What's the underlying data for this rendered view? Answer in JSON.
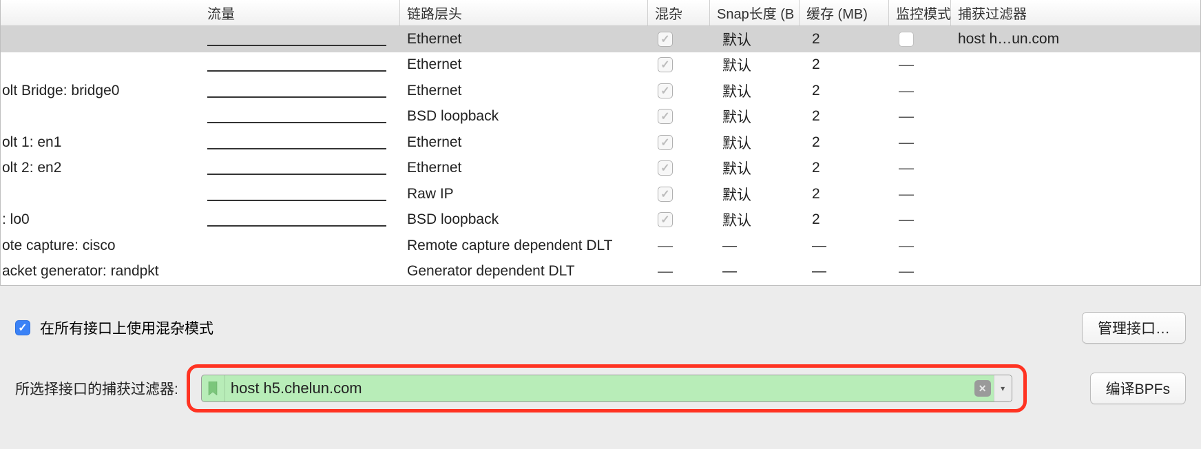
{
  "columns": {
    "interface": "",
    "traffic": "流量",
    "link": "链路层头",
    "promisc": "混杂",
    "snap": "Snap长度 (B",
    "buffer": "缓存 (MB)",
    "monitor": "监控模式",
    "filter": "捕获过滤器"
  },
  "rows": [
    {
      "iface": "",
      "link": "Ethernet",
      "promisc": "checked-gray",
      "snap": "默认",
      "buffer": "2",
      "monitor": "box-white",
      "filter": "host h…un.com",
      "selected": true,
      "sparkline": true
    },
    {
      "iface": "",
      "link": "Ethernet",
      "promisc": "checked-gray",
      "snap": "默认",
      "buffer": "2",
      "monitor": "dash",
      "filter": "",
      "selected": false,
      "sparkline": true
    },
    {
      "iface": "olt Bridge: bridge0",
      "link": "Ethernet",
      "promisc": "checked-gray",
      "snap": "默认",
      "buffer": "2",
      "monitor": "dash",
      "filter": "",
      "selected": false,
      "sparkline": true
    },
    {
      "iface": "",
      "link": "BSD loopback",
      "promisc": "checked-gray",
      "snap": "默认",
      "buffer": "2",
      "monitor": "dash",
      "filter": "",
      "selected": false,
      "sparkline": true
    },
    {
      "iface": "olt 1: en1",
      "link": "Ethernet",
      "promisc": "checked-gray",
      "snap": "默认",
      "buffer": "2",
      "monitor": "dash",
      "filter": "",
      "selected": false,
      "sparkline": true
    },
    {
      "iface": "olt 2: en2",
      "link": "Ethernet",
      "promisc": "checked-gray",
      "snap": "默认",
      "buffer": "2",
      "monitor": "dash",
      "filter": "",
      "selected": false,
      "sparkline": true
    },
    {
      "iface": "",
      "link": "Raw IP",
      "promisc": "checked-gray",
      "snap": "默认",
      "buffer": "2",
      "monitor": "dash",
      "filter": "",
      "selected": false,
      "sparkline": true
    },
    {
      "iface": ": lo0",
      "link": "BSD loopback",
      "promisc": "checked-gray",
      "snap": "默认",
      "buffer": "2",
      "monitor": "dash",
      "filter": "",
      "selected": false,
      "sparkline": true
    },
    {
      "iface": "ote capture: cisco",
      "link": "Remote capture dependent DLT",
      "promisc": "dash",
      "snap": "—",
      "buffer": "—",
      "monitor": "dash",
      "filter": "",
      "selected": false,
      "sparkline": false
    },
    {
      "iface": "acket generator: randpkt",
      "link": "Generator dependent DLT",
      "promisc": "dash",
      "snap": "—",
      "buffer": "—",
      "monitor": "dash",
      "filter": "",
      "selected": false,
      "sparkline": false
    }
  ],
  "promisc_all_label": "在所有接口上使用混杂模式",
  "manage_interfaces_label": "管理接口…",
  "filter_label": "所选择接口的捕获过滤器:",
  "filter_value": "host h5.chelun.com",
  "compile_bpf_label": "编译BPFs",
  "colors": {
    "highlight_border": "#ff3322",
    "filter_bg": "#b8edb8",
    "selected_row": "#d3d3d3",
    "checkbox_blue": "#3b82f6"
  }
}
